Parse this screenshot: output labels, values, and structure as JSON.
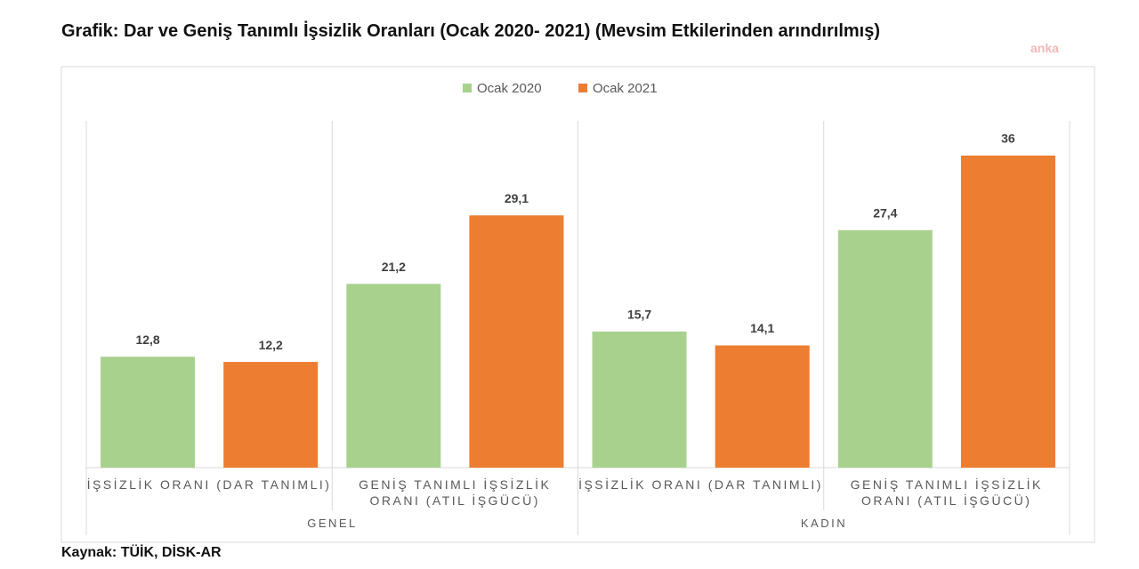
{
  "chart_data": {
    "type": "bar",
    "title": "Grafik: Dar ve Geniş Tanımlı İşsizlik Oranları (Ocak 2020- 2021) (Mevsim Etkilerinden arındırılmış)",
    "watermark": "anka",
    "source": "Kaynak: TÜİK, DİSK-AR",
    "categories": [
      "İŞSİZLİK ORANI (DAR TANIMLI)",
      "GENİŞ TANIMLI İŞSİZLİK ORANI (ATIL İŞGÜCÜ)",
      "İŞSİZLİK ORANI (DAR TANIMLI)",
      "GENİŞ TANIMLI İŞSİZLİK ORANI (ATIL İŞGÜCÜ)"
    ],
    "groups": [
      "GENEL",
      "KADIN"
    ],
    "series": [
      {
        "name": "Ocak 2020",
        "color": "#a9d18e",
        "values": [
          12.8,
          21.2,
          15.7,
          27.4
        ],
        "value_labels": [
          "12,8",
          "21,2",
          "15,7",
          "27,4"
        ]
      },
      {
        "name": "Ocak 2021",
        "color": "#ed7d31",
        "values": [
          12.2,
          29.1,
          14.1,
          36
        ],
        "value_labels": [
          "12,2",
          "29,1",
          "14,1",
          "36"
        ]
      }
    ],
    "ylim": [
      0,
      40
    ],
    "legend": "top"
  }
}
